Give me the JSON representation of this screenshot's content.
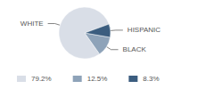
{
  "chart_data": {
    "type": "pie",
    "categories": [
      "WHITE",
      "BLACK",
      "HISPANIC"
    ],
    "values": [
      79.2,
      12.5,
      8.3
    ],
    "value_labels": [
      "79.2%",
      "12.5%",
      "8.3%"
    ],
    "colors": [
      "#d9dee7",
      "#8ea3b9",
      "#3b5d7f"
    ],
    "legend": "bottom"
  }
}
